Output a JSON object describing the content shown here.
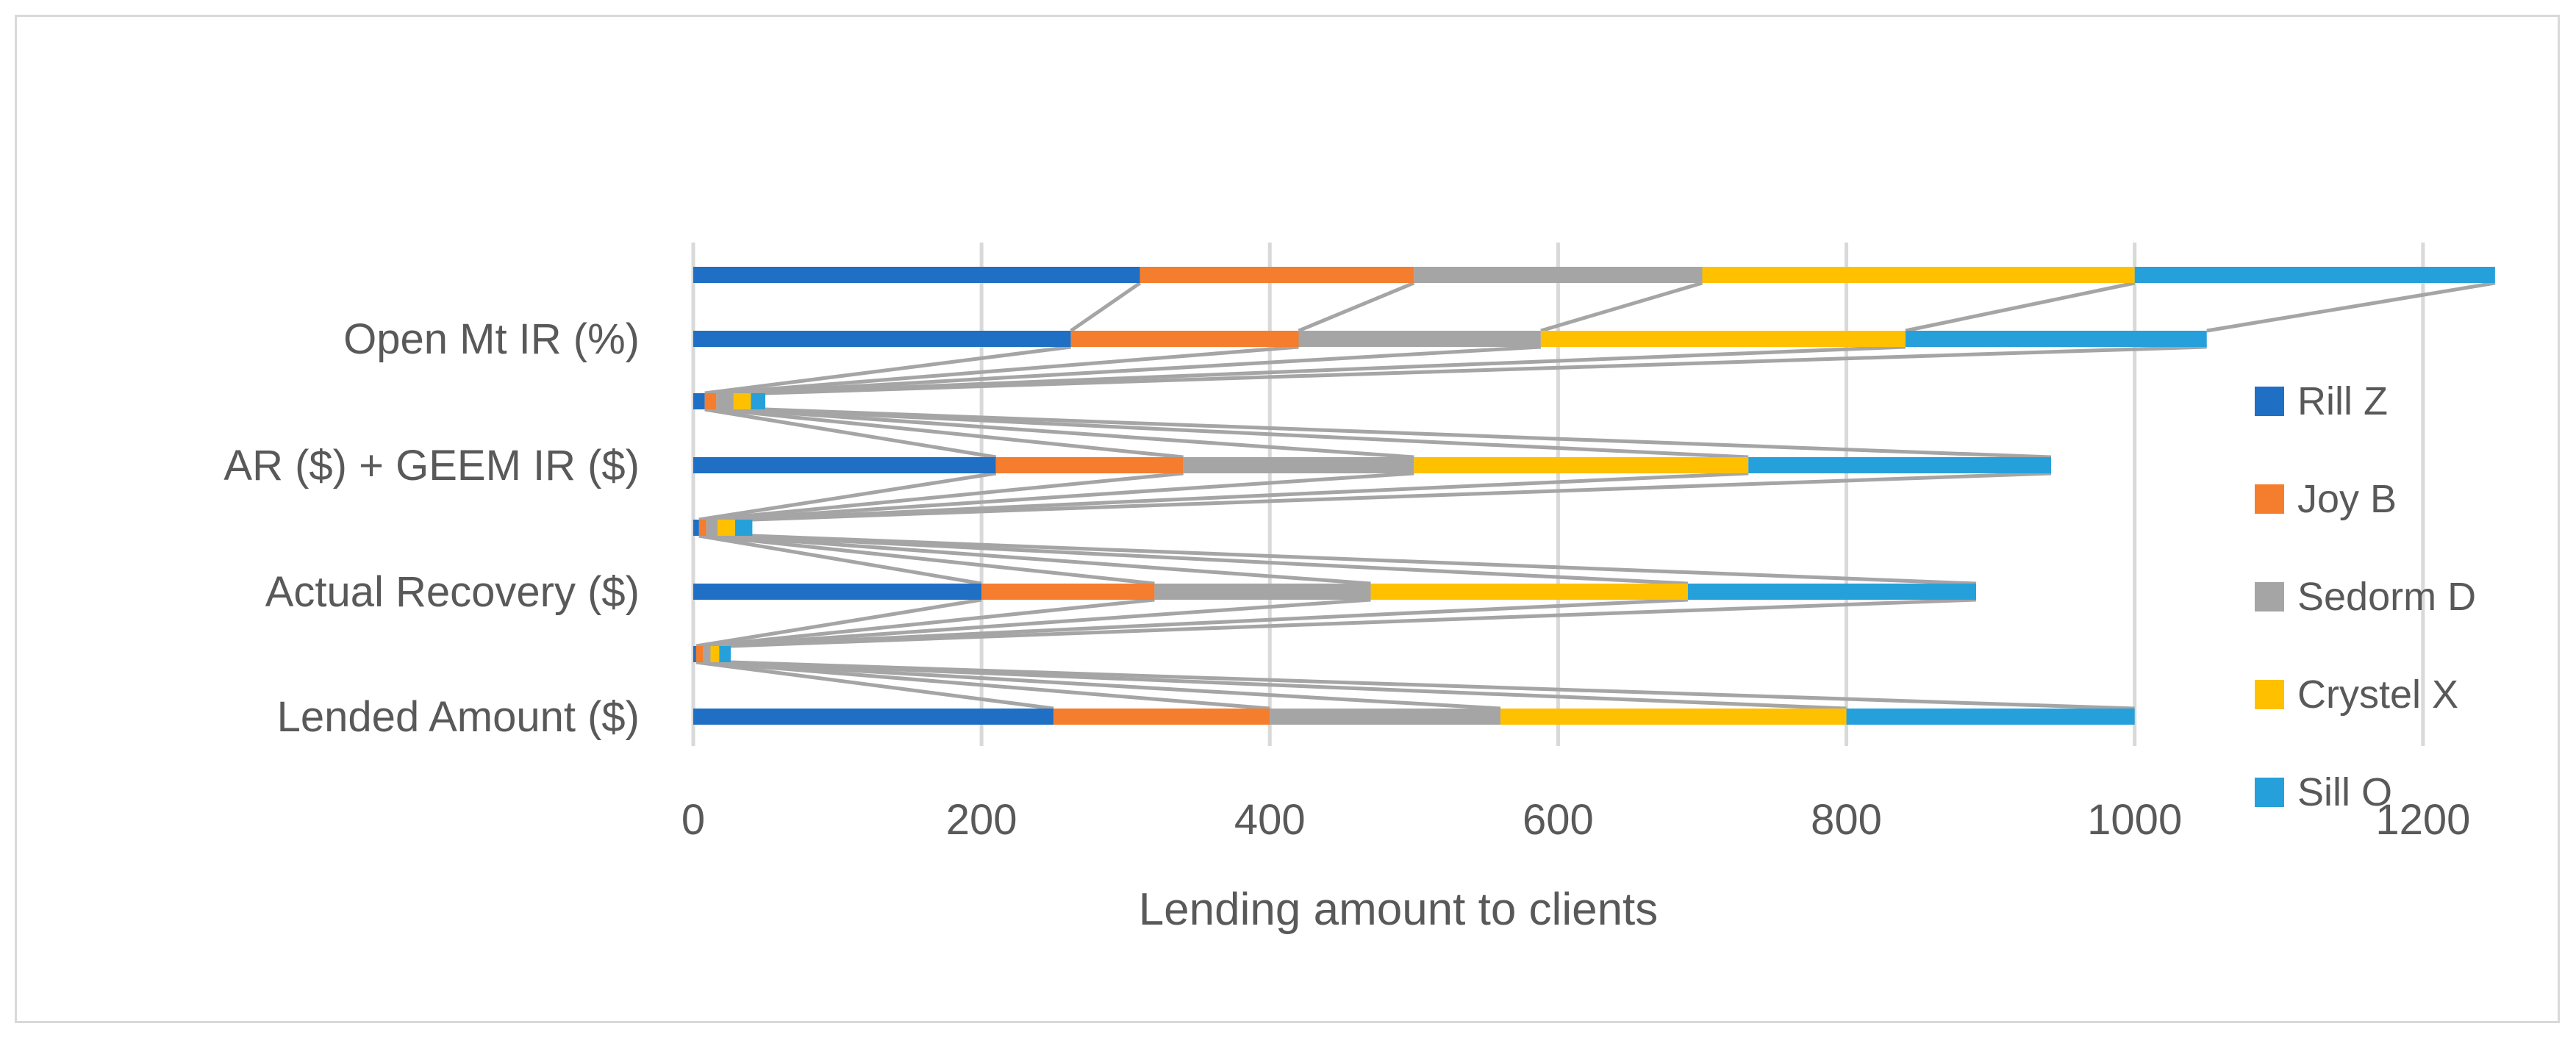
{
  "chart_data": {
    "type": "bar",
    "orientation": "horizontal",
    "stacked": true,
    "title": "",
    "xlabel": "Lending amount to clients",
    "ylabel": "",
    "xlim": [
      0,
      1400
    ],
    "x_ticks": [
      0,
      200,
      400,
      600,
      800,
      1000,
      1200,
      1400
    ],
    "grid": true,
    "legend_position": "right",
    "series_line_connectors": true,
    "category_labels": [
      {
        "row": 0,
        "label": "Lended Amount ($)"
      },
      {
        "row": 2,
        "label": "Actual Recovery ($)"
      },
      {
        "row": 4,
        "label": "AR ($) + GEEM IR ($)"
      },
      {
        "row": 6,
        "label": "Open Mt IR (%)"
      }
    ],
    "rows": [
      "",
      "",
      "",
      "",
      "",
      "",
      "",
      ""
    ],
    "series": [
      {
        "name": "Rill Z",
        "color": "#1f6fc4",
        "values": [
          250,
          2,
          200,
          4,
          210,
          8,
          262,
          20
        ]
      },
      {
        "name": "Joy B",
        "color": "#f47d2e",
        "values": [
          150,
          5,
          120,
          5,
          130,
          8,
          158,
          25
        ]
      },
      {
        "name": "Sedorm D",
        "color": "#a5a5a5",
        "values": [
          160,
          5,
          150,
          8,
          160,
          12,
          168,
          25
        ]
      },
      {
        "name": "Crystel X",
        "color": "#ffc000",
        "values": [
          240,
          6,
          220,
          12,
          232,
          12,
          253,
          25
        ]
      },
      {
        "name": "Sill O",
        "color": "#26a0da",
        "values": [
          200,
          8,
          200,
          12,
          210,
          10,
          209,
          28
        ]
      }
    ],
    "top_row": {
      "values": [
        310,
        190,
        200,
        300,
        250
      ]
    }
  }
}
